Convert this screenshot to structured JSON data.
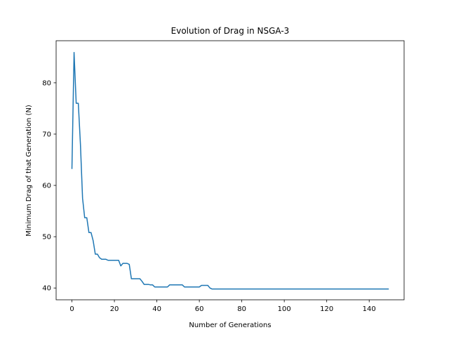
{
  "chart_data": {
    "type": "line",
    "title": "Evolution of Drag in NSGA-3",
    "xlabel": "Number of Generations",
    "ylabel": "Minimum Drag of that Generation (N)",
    "xlim": [
      -7.45,
      156.45
    ],
    "ylim": [
      37.7,
      88.2
    ],
    "xticks": [
      0,
      20,
      40,
      60,
      80,
      100,
      120,
      140
    ],
    "yticks": [
      40,
      50,
      60,
      70,
      80
    ],
    "grid": false,
    "series": [
      {
        "color": "#1f77b4",
        "x": [
          0,
          1,
          2,
          3,
          4,
          5,
          6,
          7,
          8,
          9,
          10,
          11,
          12,
          13,
          14,
          15,
          16,
          17,
          18,
          19,
          20,
          21,
          22,
          23,
          24,
          25,
          26,
          27,
          28,
          29,
          30,
          31,
          32,
          33,
          34,
          35,
          36,
          37,
          38,
          39,
          40,
          41,
          42,
          43,
          44,
          45,
          46,
          47,
          48,
          49,
          50,
          51,
          52,
          53,
          54,
          55,
          56,
          57,
          58,
          59,
          60,
          61,
          62,
          63,
          64,
          65,
          66,
          67,
          149
        ],
        "y": [
          63.3,
          85.9,
          76.0,
          76.0,
          68.0,
          57.5,
          53.7,
          53.7,
          50.8,
          50.8,
          49.2,
          46.6,
          46.6,
          45.9,
          45.6,
          45.6,
          45.6,
          45.4,
          45.4,
          45.4,
          45.4,
          45.4,
          45.4,
          44.3,
          44.8,
          44.8,
          44.8,
          44.6,
          41.8,
          41.8,
          41.8,
          41.8,
          41.8,
          41.3,
          40.7,
          40.7,
          40.7,
          40.6,
          40.6,
          40.2,
          40.2,
          40.2,
          40.2,
          40.2,
          40.2,
          40.2,
          40.6,
          40.6,
          40.6,
          40.6,
          40.6,
          40.6,
          40.6,
          40.2,
          40.2,
          40.2,
          40.2,
          40.2,
          40.2,
          40.2,
          40.2,
          40.5,
          40.5,
          40.5,
          40.5,
          40.0,
          39.8,
          39.8,
          39.8
        ]
      }
    ]
  }
}
